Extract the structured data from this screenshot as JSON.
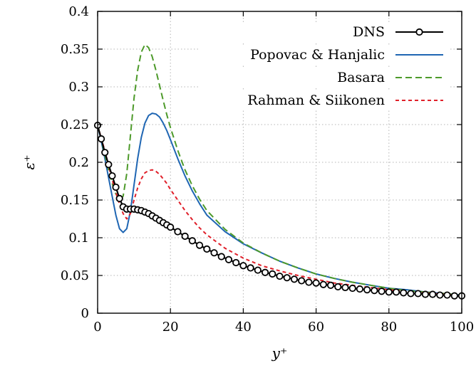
{
  "chart_data": {
    "type": "line",
    "title": "",
    "xlabel": "y⁺",
    "ylabel": "ε⁺",
    "xlim": [
      0,
      100
    ],
    "ylim": [
      0,
      0.4
    ],
    "x_ticks": [
      "0",
      "20",
      "40",
      "60",
      "80",
      "100"
    ],
    "y_ticks": [
      "0",
      "0.05",
      "0.1",
      "0.15",
      "0.2",
      "0.25",
      "0.3",
      "0.35",
      "0.4"
    ],
    "grid": true,
    "legend_position": "top-right",
    "series": [
      {
        "name": "DNS",
        "color": "#000000",
        "style": "solid-circles",
        "x": [
          0,
          1,
          2,
          3,
          4,
          5,
          6,
          7,
          8,
          9,
          10,
          11,
          12,
          13,
          14,
          15,
          16,
          17,
          18,
          19,
          20,
          22,
          24,
          26,
          28,
          30,
          32,
          34,
          36,
          38,
          40,
          42,
          44,
          46,
          48,
          50,
          52,
          54,
          56,
          58,
          60,
          62,
          64,
          66,
          68,
          70,
          72,
          74,
          76,
          78,
          80,
          82,
          84,
          86,
          88,
          90,
          92,
          94,
          96,
          98,
          100
        ],
        "y": [
          0.249,
          0.231,
          0.213,
          0.197,
          0.182,
          0.167,
          0.152,
          0.141,
          0.138,
          0.138,
          0.138,
          0.137,
          0.136,
          0.134,
          0.132,
          0.129,
          0.126,
          0.123,
          0.12,
          0.117,
          0.114,
          0.108,
          0.102,
          0.096,
          0.09,
          0.085,
          0.08,
          0.075,
          0.071,
          0.067,
          0.063,
          0.06,
          0.057,
          0.054,
          0.052,
          0.049,
          0.047,
          0.045,
          0.043,
          0.041,
          0.04,
          0.038,
          0.037,
          0.035,
          0.034,
          0.033,
          0.032,
          0.031,
          0.03,
          0.029,
          0.028,
          0.028,
          0.027,
          0.026,
          0.026,
          0.025,
          0.025,
          0.024,
          0.024,
          0.023,
          0.023
        ]
      },
      {
        "name": "Popovac & Hanjalic",
        "color": "#1f66b3",
        "style": "solid",
        "x": [
          0,
          1,
          2,
          3,
          4,
          5,
          6,
          7,
          8,
          9,
          10,
          11,
          12,
          13,
          14,
          15,
          16,
          17,
          18,
          19,
          20,
          22,
          24,
          26,
          28,
          30,
          35,
          40,
          45,
          50,
          55,
          60,
          65,
          70,
          75,
          80,
          85,
          90,
          95,
          100
        ],
        "y": [
          0.249,
          0.228,
          0.205,
          0.18,
          0.155,
          0.13,
          0.112,
          0.107,
          0.112,
          0.135,
          0.17,
          0.205,
          0.233,
          0.252,
          0.262,
          0.265,
          0.264,
          0.26,
          0.252,
          0.242,
          0.23,
          0.205,
          0.182,
          0.162,
          0.145,
          0.13,
          0.108,
          0.092,
          0.08,
          0.069,
          0.06,
          0.052,
          0.046,
          0.041,
          0.037,
          0.033,
          0.031,
          0.028,
          0.026,
          0.024
        ]
      },
      {
        "name": "Basara",
        "color": "#4d9a2a",
        "style": "long-dash",
        "x": [
          0,
          1,
          2,
          3,
          4,
          5,
          6,
          7,
          8,
          9,
          10,
          11,
          12,
          13,
          14,
          15,
          16,
          17,
          18,
          19,
          20,
          22,
          24,
          26,
          28,
          30,
          35,
          40,
          45,
          50,
          55,
          60,
          65,
          70,
          75,
          80,
          85,
          90,
          95,
          100
        ],
        "y": [
          0.249,
          0.23,
          0.21,
          0.19,
          0.172,
          0.158,
          0.15,
          0.155,
          0.185,
          0.235,
          0.285,
          0.322,
          0.346,
          0.356,
          0.352,
          0.34,
          0.322,
          0.302,
          0.282,
          0.263,
          0.246,
          0.216,
          0.19,
          0.169,
          0.151,
          0.136,
          0.111,
          0.093,
          0.08,
          0.069,
          0.06,
          0.052,
          0.046,
          0.041,
          0.037,
          0.033,
          0.03,
          0.028,
          0.026,
          0.024
        ]
      },
      {
        "name": "Rahman & Siikonen",
        "color": "#e0202a",
        "style": "short-dash",
        "x": [
          0,
          1,
          2,
          3,
          4,
          5,
          6,
          7,
          8,
          9,
          10,
          11,
          12,
          13,
          14,
          15,
          16,
          17,
          18,
          19,
          20,
          22,
          24,
          26,
          28,
          30,
          35,
          40,
          45,
          50,
          55,
          60,
          65,
          70,
          75,
          80,
          85,
          90,
          95,
          100
        ],
        "y": [
          0.249,
          0.232,
          0.215,
          0.196,
          0.177,
          0.16,
          0.145,
          0.132,
          0.125,
          0.132,
          0.15,
          0.166,
          0.178,
          0.186,
          0.189,
          0.19,
          0.188,
          0.184,
          0.178,
          0.172,
          0.164,
          0.15,
          0.136,
          0.124,
          0.113,
          0.104,
          0.086,
          0.073,
          0.063,
          0.056,
          0.05,
          0.045,
          0.04,
          0.037,
          0.034,
          0.031,
          0.029,
          0.027,
          0.025,
          0.024
        ]
      }
    ]
  }
}
